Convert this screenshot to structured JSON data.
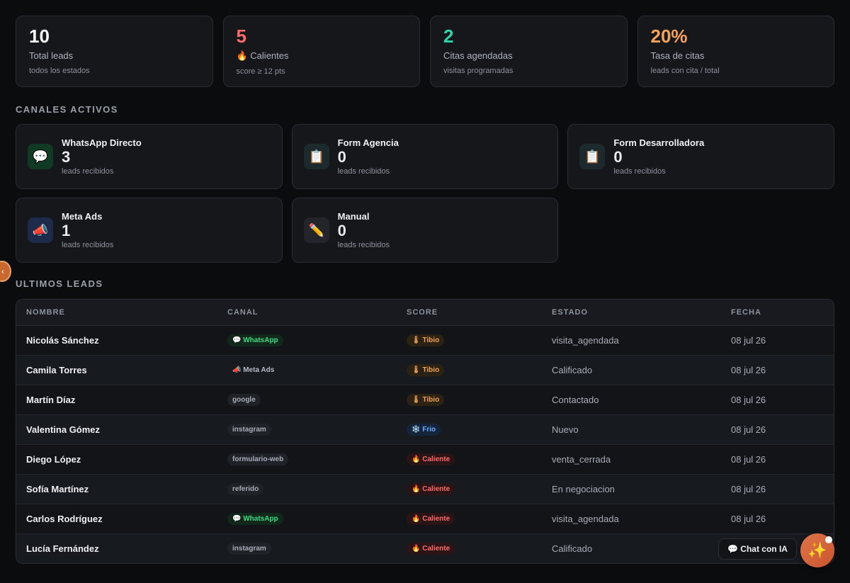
{
  "stats": [
    {
      "value": "10",
      "label": "Total leads",
      "sub": "todos los estados",
      "color": "#ffffff"
    },
    {
      "value": "5",
      "label": "🔥 Calientes",
      "sub": "score ≥ 12 pts",
      "color": "#ff6b6b"
    },
    {
      "value": "2",
      "label": "Citas agendadas",
      "sub": "visitas programadas",
      "color": "#2dd4aa"
    },
    {
      "value": "20%",
      "label": "Tasa de citas",
      "sub": "leads con cita / total",
      "color": "#f4a25a"
    }
  ],
  "channels_title": "CANALES ACTIVOS",
  "channels": [
    {
      "name": "WhatsApp Directo",
      "count": "3",
      "sub": "leads recibidos",
      "icon": "💬",
      "icon_bg": "#103a23"
    },
    {
      "name": "Form Agencia",
      "count": "0",
      "sub": "leads recibidos",
      "icon": "📋",
      "icon_bg": "#1c2a2e"
    },
    {
      "name": "Form Desarrolladora",
      "count": "0",
      "sub": "leads recibidos",
      "icon": "📋",
      "icon_bg": "#1c2a2e"
    },
    {
      "name": "Meta Ads",
      "count": "1",
      "sub": "leads recibidos",
      "icon": "📣",
      "icon_bg": "#1d2a4a"
    },
    {
      "name": "Manual",
      "count": "0",
      "sub": "leads recibidos",
      "icon": "✏️",
      "icon_bg": "#23252b"
    }
  ],
  "leads_title": "ULTIMOS LEADS",
  "table": {
    "headers": [
      "NOMBRE",
      "CANAL",
      "SCORE",
      "ESTADO",
      "FECHA"
    ],
    "rows": [
      {
        "nombre": "Nicolás Sánchez",
        "canal": "💬 WhatsApp",
        "canal_type": "wa",
        "score": "🌡 Tibio",
        "score_type": "tibio",
        "estado": "visita_agendada",
        "fecha": "08 jul 26"
      },
      {
        "nombre": "Camila Torres",
        "canal": "📣 Meta Ads",
        "canal_type": "meta",
        "score": "🌡 Tibio",
        "score_type": "tibio",
        "estado": "Calificado",
        "fecha": "08 jul 26"
      },
      {
        "nombre": "Martín Díaz",
        "canal": "google",
        "canal_type": "plain",
        "score": "🌡 Tibio",
        "score_type": "tibio",
        "estado": "Contactado",
        "fecha": "08 jul 26"
      },
      {
        "nombre": "Valentina Gómez",
        "canal": "instagram",
        "canal_type": "plain",
        "score": "❄️ Frio",
        "score_type": "frio",
        "estado": "Nuevo",
        "fecha": "08 jul 26"
      },
      {
        "nombre": "Diego López",
        "canal": "formulario-web",
        "canal_type": "plain",
        "score": "🔥 Caliente",
        "score_type": "caliente",
        "estado": "venta_cerrada",
        "fecha": "08 jul 26"
      },
      {
        "nombre": "Sofía Martínez",
        "canal": "referido",
        "canal_type": "plain",
        "score": "🔥 Caliente",
        "score_type": "caliente",
        "estado": "En negociacion",
        "fecha": "08 jul 26"
      },
      {
        "nombre": "Carlos Rodríguez",
        "canal": "💬 WhatsApp",
        "canal_type": "wa",
        "score": "🔥 Caliente",
        "score_type": "caliente",
        "estado": "visita_agendada",
        "fecha": "08 jul 26"
      },
      {
        "nombre": "Lucía Fernández",
        "canal": "instagram",
        "canal_type": "plain",
        "score": "🔥 Caliente",
        "score_type": "caliente",
        "estado": "Calificado",
        "fecha": ""
      }
    ]
  },
  "side_handle": "‹",
  "chat": {
    "label": "💬 Chat con IA",
    "fab_icon": "✨"
  }
}
